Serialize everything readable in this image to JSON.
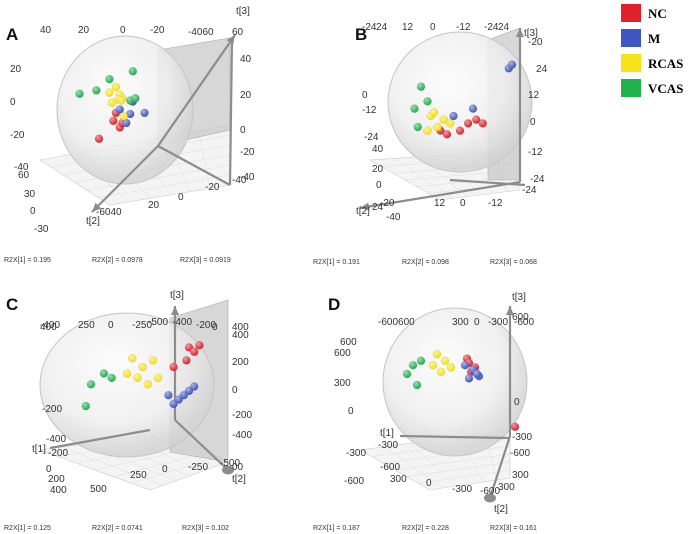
{
  "chart_data": [
    {
      "type": "scatter",
      "panel_label": "A",
      "axis_labels": {
        "t1": "",
        "t2": "t[2]",
        "t3": "t[3]"
      },
      "stats": [
        "R2X[1] = 0.195",
        "R2X[2] = 0.0978",
        "R2X[3] = 0.0919"
      ],
      "axis_ticks": {
        "top": [
          "40",
          "20",
          "0",
          "-20",
          "-4060",
          "60"
        ],
        "left": [
          "20",
          "0",
          "-20",
          "-40"
        ],
        "lower_left": [
          "60",
          "30",
          "0",
          "-30"
        ],
        "bottom": [
          "-6040",
          "20",
          "0",
          "-20",
          "-40"
        ],
        "right": [
          "40",
          "20",
          "0",
          "-20",
          "-40"
        ]
      },
      "series": [
        {
          "name": "NC",
          "points": [
            [
              -14,
              -20
            ],
            [
              -12,
              -16
            ],
            [
              -19,
              -14
            ],
            [
              -17,
              -7
            ],
            [
              -30,
              -30
            ]
          ]
        },
        {
          "name": "M",
          "points": [
            [
              -6,
              -8
            ],
            [
              -4,
              3
            ],
            [
              -9,
              -16
            ],
            [
              -14,
              -4
            ],
            [
              5,
              -7
            ]
          ]
        },
        {
          "name": "RCAS",
          "points": [
            [
              -17,
              16
            ],
            [
              -14,
              9
            ],
            [
              -12,
              6
            ],
            [
              -20,
              2
            ],
            [
              -15,
              5
            ],
            [
              -22,
              11
            ],
            [
              -11,
              -10
            ],
            [
              -13,
              4
            ]
          ]
        },
        {
          "name": "VCAS",
          "points": [
            [
              -32,
              13
            ],
            [
              -45,
              10
            ],
            [
              -6,
              4
            ],
            [
              -2,
              6
            ],
            [
              -22,
              23
            ],
            [
              -4,
              30
            ]
          ]
        }
      ]
    },
    {
      "type": "scatter",
      "panel_label": "B",
      "axis_labels": {
        "t1": "",
        "t2": "t[2]",
        "t3": "t[3]"
      },
      "stats": [
        "R2X[1] = 0.191",
        "R2X[2] = 0.098",
        "R2X[3] = 0.068"
      ],
      "axis_ticks": {
        "top": [
          "-24",
          "24",
          "12",
          "0",
          "-12",
          "-24",
          "24",
          "-20",
          "24"
        ],
        "left": [
          "0",
          "-12",
          "-24",
          "40"
        ],
        "lower_left": [
          "20",
          "0",
          "-20",
          "-40"
        ],
        "bottom": [
          "24",
          "12",
          "0",
          "-12",
          "-24"
        ],
        "right": [
          "12",
          "0",
          "-12",
          "-24"
        ]
      },
      "series": [
        {
          "name": "NC",
          "points": [
            [
              0,
              -14
            ],
            [
              10,
              -8
            ],
            [
              5,
              -10
            ],
            [
              -12,
              -14
            ],
            [
              -8,
              -16
            ],
            [
              14,
              -10
            ]
          ]
        },
        {
          "name": "M",
          "points": [
            [
              30,
              20
            ],
            [
              32,
              22
            ],
            [
              -4,
              -6
            ],
            [
              8,
              -2
            ]
          ]
        },
        {
          "name": "RCAS",
          "points": [
            [
              -18,
              -6
            ],
            [
              -14,
              -12
            ],
            [
              -10,
              -8
            ],
            [
              -20,
              -14
            ],
            [
              -6,
              -10
            ],
            [
              -16,
              -4
            ]
          ]
        },
        {
          "name": "VCAS",
          "points": [
            [
              -28,
              -2
            ],
            [
              -24,
              10
            ],
            [
              -20,
              2
            ],
            [
              -26,
              -12
            ]
          ]
        }
      ]
    },
    {
      "type": "scatter",
      "panel_label": "C",
      "axis_labels": {
        "t1": "t[1]",
        "t2": "t[2]",
        "t3": "t[3]"
      },
      "stats": [
        "R2X[1] = 0.125",
        "R2X[2] = 0.0741",
        "R2X[3] = 0.102"
      ],
      "axis_ticks": {
        "top": [
          "-400",
          "250",
          "0",
          "-250",
          "-500",
          "-400",
          "-200",
          "0",
          "400"
        ],
        "left": [
          "400",
          "-200",
          "-400",
          "-200"
        ],
        "lower_left": [
          "0",
          "200",
          "400",
          "500"
        ],
        "bottom": [
          "250",
          "0",
          "-250",
          "-500"
        ],
        "right": [
          "400",
          "200",
          "0",
          "-200",
          "-400",
          "00"
        ]
      },
      "series": [
        {
          "name": "NC",
          "points": [
            [
              180,
              180
            ],
            [
              200,
              160
            ],
            [
              220,
              190
            ],
            [
              170,
              120
            ],
            [
              120,
              90
            ]
          ]
        },
        {
          "name": "M",
          "points": [
            [
              160,
              -40
            ],
            [
              140,
              -60
            ],
            [
              180,
              -20
            ],
            [
              100,
              -40
            ],
            [
              120,
              -80
            ],
            [
              200,
              0
            ]
          ]
        },
        {
          "name": "RCAS",
          "points": [
            [
              -40,
              130
            ],
            [
              0,
              90
            ],
            [
              40,
              120
            ],
            [
              -20,
              40
            ],
            [
              60,
              40
            ],
            [
              -60,
              60
            ],
            [
              20,
              10
            ]
          ]
        },
        {
          "name": "VCAS",
          "points": [
            [
              -200,
              10
            ],
            [
              -150,
              60
            ],
            [
              -220,
              -90
            ],
            [
              -120,
              40
            ]
          ]
        }
      ]
    },
    {
      "type": "scatter",
      "panel_label": "D",
      "axis_labels": {
        "t1": "t[1]",
        "t2": "t[2]",
        "t3": "t[3]"
      },
      "stats": [
        "R2X[1] = 0.187",
        "R2X[2] = 0.228",
        "R2X[3] = 0.161"
      ],
      "axis_ticks": {
        "top": [
          "-600600",
          "300",
          "0",
          "-300",
          "-600"
        ],
        "left": [
          "600",
          "600",
          "300",
          "0",
          "-300",
          "-600"
        ],
        "lower_left": [
          "-300",
          "-600"
        ],
        "bottom": [
          "300",
          "0",
          "-300",
          "-600",
          "300"
        ],
        "right": [
          "600",
          "0",
          "-300",
          "-600",
          "300"
        ]
      },
      "series": [
        {
          "name": "NC",
          "points": [
            [
              110,
              70
            ],
            [
              120,
              50
            ],
            [
              150,
              30
            ],
            [
              130,
              10
            ],
            [
              350,
              -240
            ]
          ]
        },
        {
          "name": "M",
          "points": [
            [
              100,
              40
            ],
            [
              140,
              20
            ],
            [
              170,
              -10
            ],
            [
              160,
              0
            ],
            [
              120,
              -20
            ]
          ]
        },
        {
          "name": "RCAS",
          "points": [
            [
              -40,
              90
            ],
            [
              0,
              60
            ],
            [
              30,
              30
            ],
            [
              -60,
              40
            ],
            [
              -20,
              10
            ]
          ]
        },
        {
          "name": "VCAS",
          "points": [
            [
              -160,
              40
            ],
            [
              -190,
              0
            ],
            [
              -120,
              60
            ],
            [
              -140,
              -50
            ]
          ]
        }
      ]
    }
  ],
  "legend": [
    {
      "name": "NC",
      "color": "#e0202a"
    },
    {
      "name": "M",
      "color": "#4057c2"
    },
    {
      "name": "RCAS",
      "color": "#f7e318"
    },
    {
      "name": "VCAS",
      "color": "#20b14c"
    }
  ]
}
